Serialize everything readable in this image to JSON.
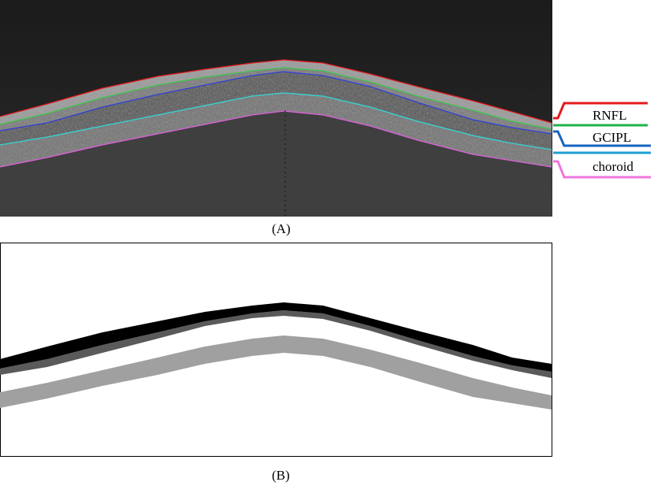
{
  "panel_a": {
    "label": "(A)",
    "legend": [
      {
        "name": "RNFL",
        "color": "#e41a1c"
      },
      {
        "name": "",
        "color": "#1fb24a"
      },
      {
        "name": "GCIPL",
        "color": "#1565c0"
      },
      {
        "name": "",
        "color": "#1e9fd4"
      },
      {
        "name": "choroid",
        "color": "#f075e0"
      }
    ],
    "boundary_colors": {
      "ilm": "#e41a1c",
      "rnfl_gcl": "#3cc84a",
      "ipl_inl": "#2f3fd8",
      "ellipsoid": "#36d6d6",
      "choroid": "#e060e0"
    }
  },
  "panel_b": {
    "label": "(B)",
    "layer_colors": {
      "rnfl": "#000000",
      "gcipl": "#5a5a5a",
      "choroid": "#a0a0a0",
      "background": "#ffffff"
    }
  }
}
